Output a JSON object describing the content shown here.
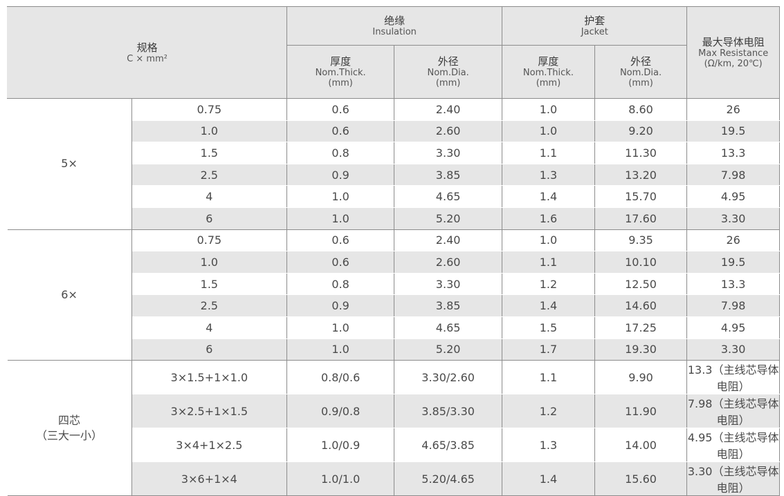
{
  "header": {
    "spec_zh": "规格",
    "spec_en": "C × mm²",
    "insulation_zh": "绝缘",
    "insulation_en": "Insulation",
    "jacket_zh": "护套",
    "jacket_en": "Jacket",
    "resistance_zh": "最大导体电阻",
    "resistance_en1": "Max Resistance",
    "resistance_en2": "(Ω/km, 20℃)",
    "thick_zh": "厚度",
    "thick_en1": "Nom.Thick.",
    "thick_en2": "(mm)",
    "dia_zh": "外径",
    "dia_en1": "Nom.Dia.",
    "dia_en2": "(mm)"
  },
  "groups": [
    {
      "label": [
        "5×"
      ],
      "rows": [
        [
          "0.75",
          "0.6",
          "2.40",
          "1.0",
          "8.60",
          "26"
        ],
        [
          "1.0",
          "0.6",
          "2.60",
          "1.0",
          "9.20",
          "19.5"
        ],
        [
          "1.5",
          "0.8",
          "3.30",
          "1.1",
          "11.30",
          "13.3"
        ],
        [
          "2.5",
          "0.9",
          "3.85",
          "1.3",
          "13.20",
          "7.98"
        ],
        [
          "4",
          "1.0",
          "4.65",
          "1.4",
          "15.70",
          "4.95"
        ],
        [
          "6",
          "1.0",
          "5.20",
          "1.6",
          "17.60",
          "3.30"
        ]
      ]
    },
    {
      "label": [
        "6×"
      ],
      "rows": [
        [
          "0.75",
          "0.6",
          "2.40",
          "1.0",
          "9.35",
          "26"
        ],
        [
          "1.0",
          "0.6",
          "2.60",
          "1.1",
          "10.10",
          "19.5"
        ],
        [
          "1.5",
          "0.8",
          "3.30",
          "1.2",
          "12.50",
          "13.3"
        ],
        [
          "2.5",
          "0.9",
          "3.85",
          "1.4",
          "14.60",
          "7.98"
        ],
        [
          "4",
          "1.0",
          "4.65",
          "1.5",
          "17.25",
          "4.95"
        ],
        [
          "6",
          "1.0",
          "5.20",
          "1.7",
          "19.30",
          "3.30"
        ]
      ]
    },
    {
      "label": [
        "四芯",
        "（三大一小）"
      ],
      "rows": [
        [
          "3×1.5+1×1.0",
          "0.8/0.6",
          "3.30/2.60",
          "1.1",
          "9.90",
          "13.3（主线芯导体电阻）"
        ],
        [
          "3×2.5+1×1.5",
          "0.9/0.8",
          "3.85/3.30",
          "1.2",
          "11.90",
          "7.98（主线芯导体电阻）"
        ],
        [
          "3×4+1×2.5",
          "1.0/0.9",
          "4.65/3.85",
          "1.3",
          "14.00",
          "4.95（主线芯导体电阻）"
        ],
        [
          "3×6+1×4",
          "1.0/1.0",
          "5.20/4.65",
          "1.4",
          "15.60",
          "3.30（主线芯导体电阻）"
        ]
      ]
    }
  ]
}
